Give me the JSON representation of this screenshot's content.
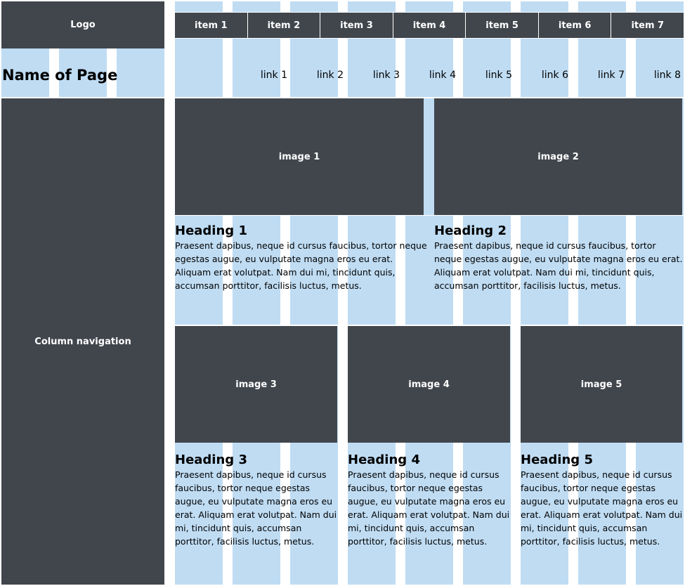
{
  "logo": "Logo",
  "page_title": "Name of Page",
  "nav_items": [
    "item 1",
    "item 2",
    "item 3",
    "item 4",
    "item 5",
    "item 6",
    "item 7"
  ],
  "links": [
    "link 1",
    "link 2",
    "link 3",
    "link 4",
    "link 5",
    "link 6",
    "link 7",
    "link 8"
  ],
  "column_navigation": "Column navigation",
  "cards": [
    {
      "image": "image 1",
      "heading": "Heading 1",
      "text": "Praesent dapibus, neque id cursus faucibus, tortor neque egestas augue, eu vulputate magna eros eu erat. Aliquam erat volutpat. Nam dui mi, tincidunt quis, accumsan porttitor, facilisis luctus, metus."
    },
    {
      "image": "image 2",
      "heading": "Heading 2",
      "text": "Praesent dapibus, neque id cursus faucibus, tortor neque egestas augue, eu vulputate magna eros eu erat. Aliquam erat volutpat. Nam dui mi, tincidunt quis, accumsan porttitor, facilisis luctus, metus."
    },
    {
      "image": "image 3",
      "heading": "Heading 3",
      "text": "Praesent dapibus, neque id cursus faucibus, tortor neque egestas augue, eu vulputate magna eros eu erat. Aliquam erat volutpat. Nam dui mi, tincidunt quis, accumsan porttitor, facilisis luctus, metus."
    },
    {
      "image": "image 4",
      "heading": "Heading 4",
      "text": "Praesent dapibus, neque id cursus faucibus, tortor neque egestas augue, eu vulputate magna eros eu erat. Aliquam erat volutpat. Nam dui mi, tincidunt quis, accumsan porttitor, facilisis luctus, metus."
    },
    {
      "image": "image 5",
      "heading": "Heading 5",
      "text": "Praesent dapibus, neque id cursus faucibus, tortor neque egestas augue, eu vulputate magna eros eu erat. Aliquam erat volutpat. Nam dui mi, tincidunt quis, accumsan porttitor, facilisis luctus, metus."
    }
  ],
  "colors": {
    "dark": "#41464d",
    "grid": "#bfdcf3"
  }
}
